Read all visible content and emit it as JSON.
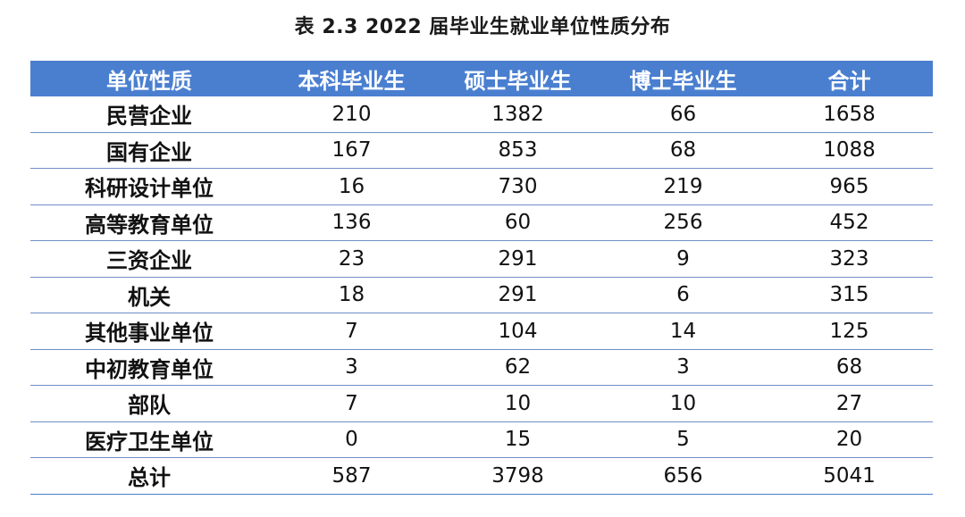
{
  "caption": "表 2.3   2022 届毕业生就业单位性质分布",
  "headers": [
    "单位性质",
    "本科毕业生",
    "硕士毕业生",
    "博士毕业生",
    "合计"
  ],
  "rows": [
    [
      "民营企业",
      "210",
      "1382",
      "66",
      "1658"
    ],
    [
      "国有企业",
      "167",
      "853",
      "68",
      "1088"
    ],
    [
      "科研设计单位",
      "16",
      "730",
      "219",
      "965"
    ],
    [
      "高等教育单位",
      "136",
      "60",
      "256",
      "452"
    ],
    [
      "三资企业",
      "23",
      "291",
      "9",
      "323"
    ],
    [
      "机关",
      "18",
      "291",
      "6",
      "315"
    ],
    [
      "其他事业单位",
      "7",
      "104",
      "14",
      "125"
    ],
    [
      "中初教育单位",
      "3",
      "62",
      "3",
      "68"
    ],
    [
      "部队",
      "7",
      "10",
      "10",
      "27"
    ],
    [
      "医疗卫生单位",
      "0",
      "15",
      "5",
      "20"
    ],
    [
      "总计",
      "587",
      "3798",
      "656",
      "5041"
    ]
  ],
  "colors": {
    "header_bg": "#4a7fd0",
    "header_text": "#ffffff",
    "rule": "#6f8fc6"
  }
}
